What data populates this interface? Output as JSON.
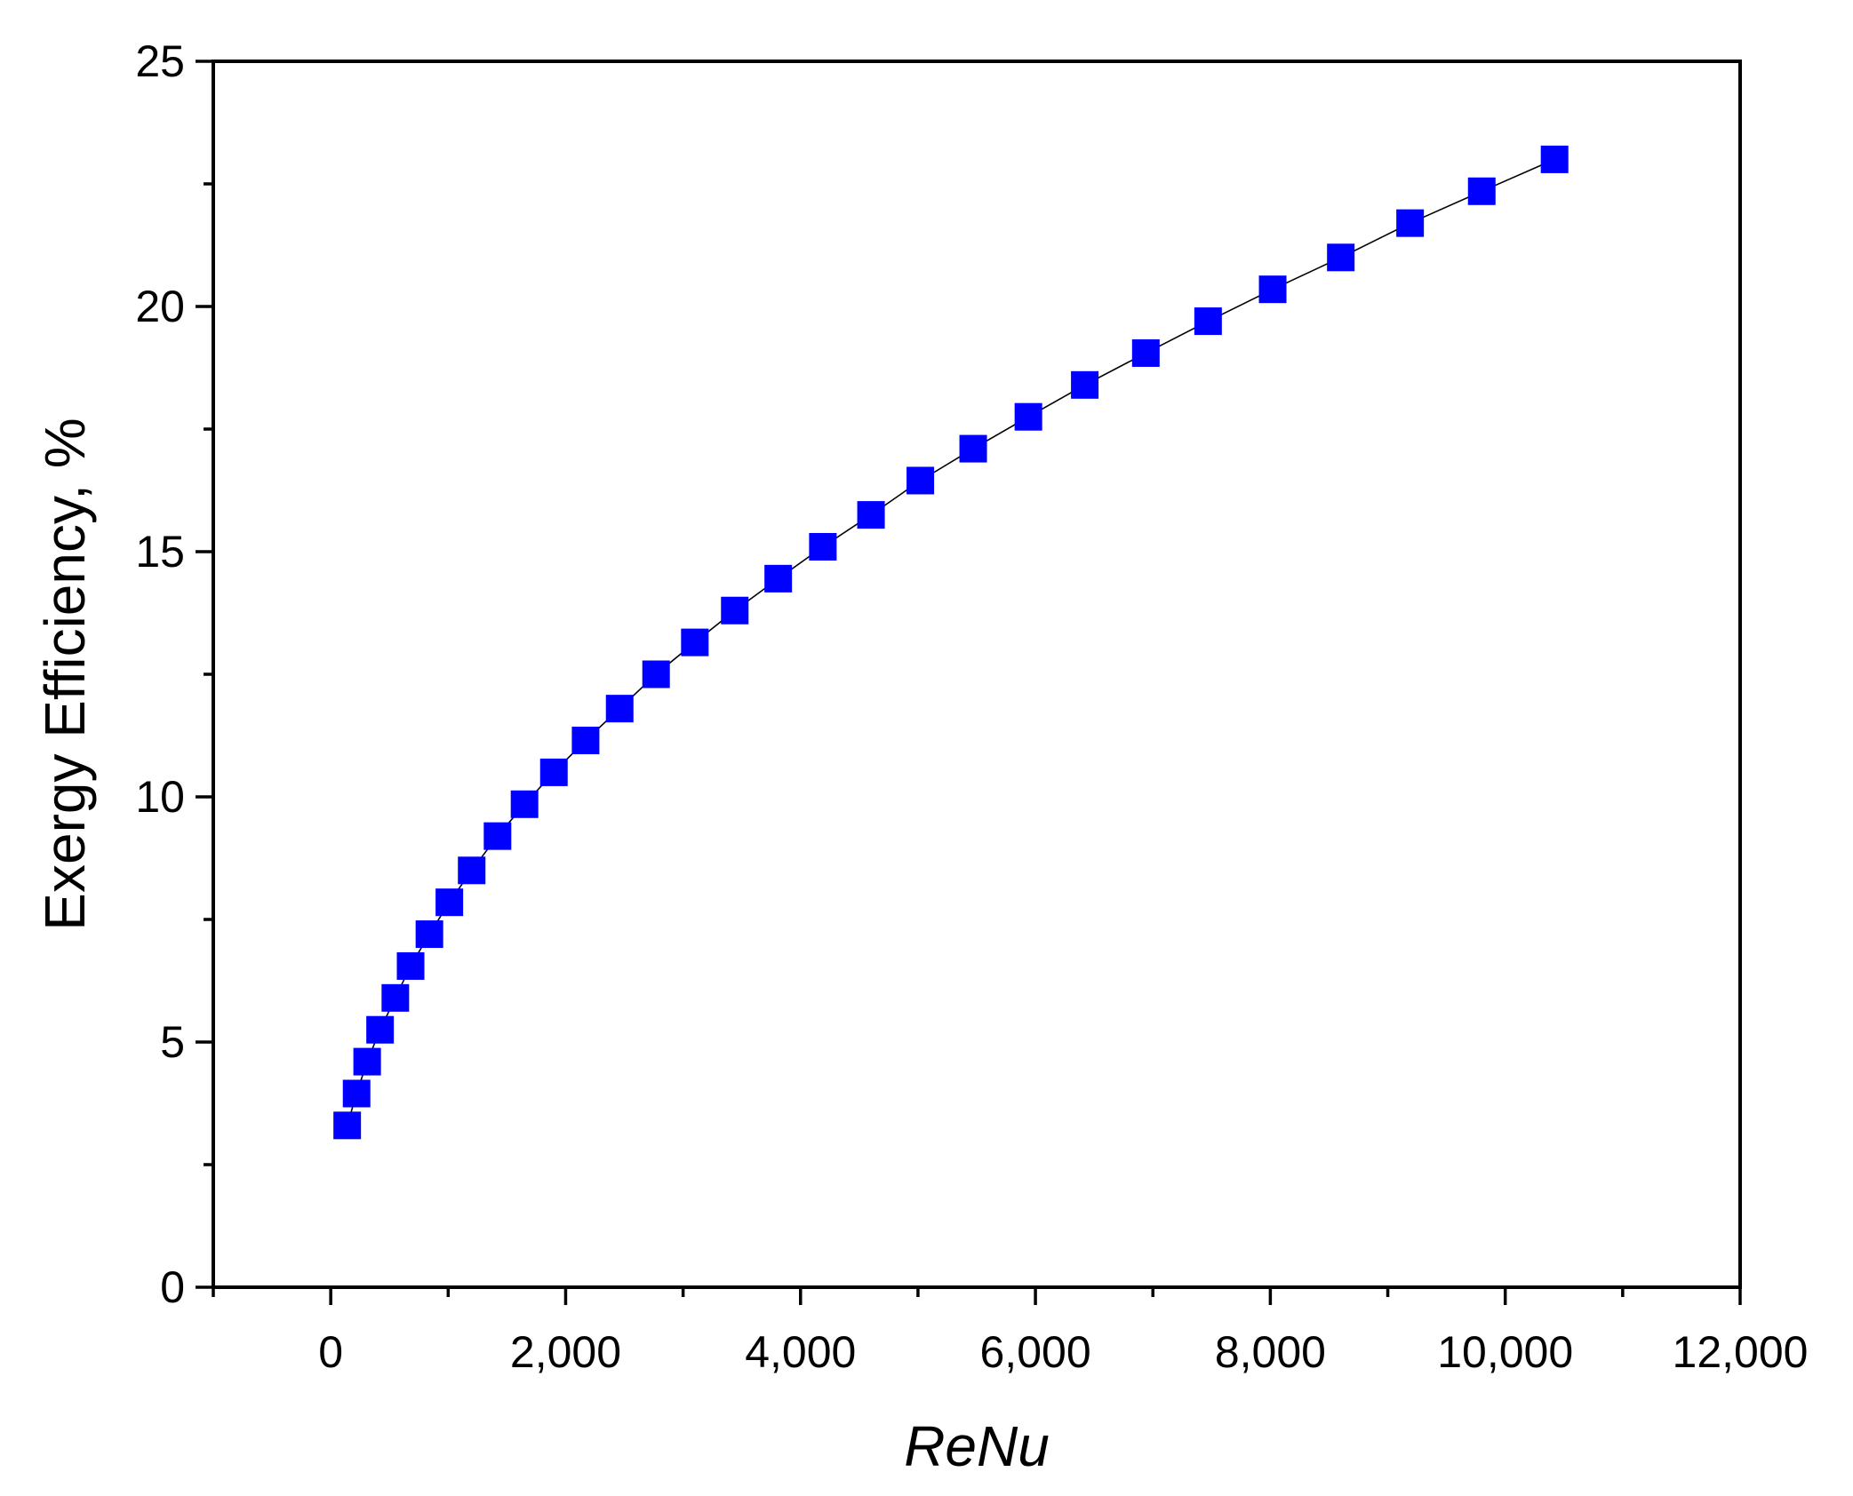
{
  "chart_data": {
    "type": "scatter",
    "title": "",
    "xlabel": "ReNu",
    "ylabel": "Exergy Efficiency, %",
    "xlim": [
      -1000,
      12000
    ],
    "ylim": [
      0,
      25
    ],
    "x_ticks": [
      0,
      2000,
      4000,
      6000,
      8000,
      10000,
      12000
    ],
    "x_tick_labels": [
      "0",
      "2,000",
      "4,000",
      "6,000",
      "8,000",
      "10,000",
      "12,000"
    ],
    "x_minor_ticks": [
      -1000,
      1000,
      3000,
      5000,
      7000,
      9000,
      11000
    ],
    "y_ticks": [
      0,
      5,
      10,
      15,
      20,
      25
    ],
    "y_tick_labels": [
      "0",
      "5",
      "10",
      "15",
      "20",
      "25"
    ],
    "y_minor_ticks": [
      2.5,
      7.5,
      12.5,
      17.5,
      22.5
    ],
    "grid": false,
    "legend": "none",
    "marker_color": "#0000ff",
    "line_color": "#000000",
    "series": [
      {
        "x": [
          140,
          220,
          310,
          420,
          550,
          680,
          840,
          1010,
          1200,
          1420,
          1650,
          1900,
          2170,
          2460,
          2770,
          3100,
          3440,
          3810,
          4190,
          4600,
          5020,
          5470,
          5940,
          6420,
          6940,
          7470,
          8020,
          8600,
          9190,
          9800,
          10420
        ],
        "y": [
          3.3,
          3.95,
          4.6,
          5.25,
          5.9,
          6.55,
          7.2,
          7.85,
          8.5,
          9.2,
          9.85,
          10.5,
          11.15,
          11.8,
          12.5,
          13.15,
          13.8,
          14.45,
          15.1,
          15.75,
          16.45,
          17.1,
          17.75,
          18.4,
          19.05,
          19.7,
          20.35,
          21.0,
          21.7,
          22.35,
          23.0
        ]
      }
    ]
  }
}
